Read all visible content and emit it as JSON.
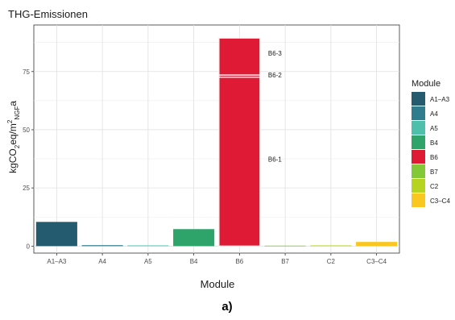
{
  "figure": {
    "caption": "a)"
  },
  "chart_data": {
    "type": "bar",
    "title": "THG-Emissionen",
    "xlabel": "Module",
    "ylabel": {
      "base": "kgCO",
      "sub1": "2",
      "mid": "eq/m",
      "sup": "2",
      "sub2": "NGF",
      "end": "a"
    },
    "categories": [
      "A1–A3",
      "A4",
      "A5",
      "B4",
      "B6",
      "B7",
      "C2",
      "C3–C4"
    ],
    "values": [
      10.4,
      0.4,
      0.3,
      7.3,
      89.4,
      0.2,
      0.3,
      1.8
    ],
    "colors": [
      "#255b6e",
      "#2f7c8f",
      "#4dbfaa",
      "#2ea36a",
      "#de1a34",
      "#83c836",
      "#b5d31f",
      "#f9c720"
    ],
    "stacks": {
      "B6": [
        {
          "label": "B6-1",
          "value": 72.6
        },
        {
          "label": "B6-2",
          "value": 0.9
        },
        {
          "label": "B6-3",
          "value": 15.9
        }
      ]
    },
    "ylim": [
      -3,
      95
    ],
    "yticks": [
      0,
      25,
      50,
      75
    ],
    "grid": true,
    "legend": {
      "title": "Module",
      "position": "right",
      "items": [
        "A1–A3",
        "A4",
        "A5",
        "B4",
        "B6",
        "B7",
        "C2",
        "C3–C4"
      ]
    }
  }
}
